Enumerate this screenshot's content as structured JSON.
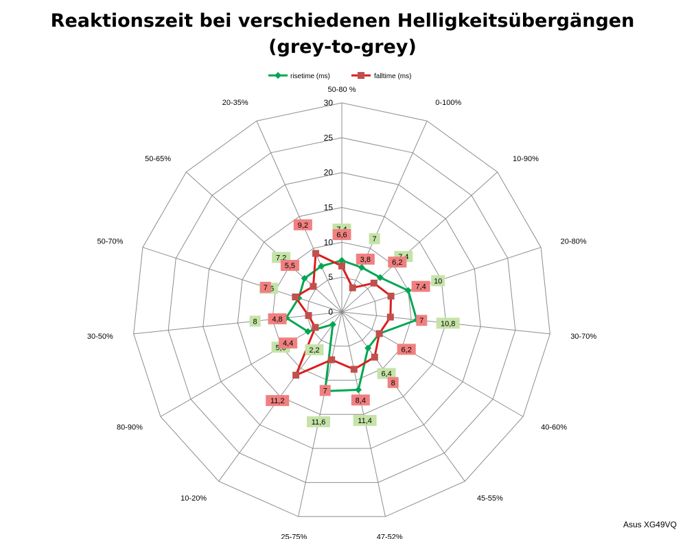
{
  "chart_data": {
    "type": "radar",
    "title_line1": "Reaktionszeit bei verschiedenen Helligkeitsübergängen",
    "title_line2": "(grey-to-grey)",
    "categories": [
      "50-80 %",
      "0-100%",
      "10-90%",
      "20-80%",
      "30-70%",
      "40-60%",
      "45-55%",
      "47-52%",
      "25-75%",
      "10-20%",
      "80-90%",
      "30-50%",
      "50-70%",
      "50-65%",
      "20-35%"
    ],
    "rlim": [
      0,
      30
    ],
    "ticks": [
      "0",
      "5",
      "10",
      "15",
      "20",
      "25",
      "30"
    ],
    "grid": true,
    "legend_position": "top",
    "series": [
      {
        "name": "risetime (ms)",
        "color": "#00A651",
        "marker": "diamond",
        "label_bg": "#C5E3A8",
        "values": [
          7.4,
          7,
          7.4,
          10,
          10.8,
          6.2,
          6.4,
          11.4,
          11.6,
          2.2,
          5.6,
          8,
          6.5,
          7.2,
          7.2
        ],
        "labels": [
          "7,4",
          "7",
          "7,4",
          "10",
          "10,8",
          "6,2",
          "6,4",
          "11,4",
          "11,6",
          "2,2",
          "5,6",
          "8",
          "6,5",
          "7,2",
          ""
        ]
      },
      {
        "name": "falltime (ms)",
        "color": "#DD1C1C",
        "marker": "square",
        "label_bg": "#F08080",
        "values": [
          6.6,
          3.8,
          6.2,
          7.4,
          7,
          6.2,
          8,
          8.4,
          7,
          11.2,
          4.4,
          4.8,
          7,
          5.5,
          9.2
        ],
        "labels": [
          "6,6",
          "3,8",
          "6,2",
          "7,4",
          "7",
          "6,2",
          "8",
          "8,4",
          "7",
          "11,2",
          "4,4",
          "4,8",
          "7",
          "5,5",
          "9,2"
        ]
      }
    ]
  },
  "watermark": "Asus XG49VQ"
}
